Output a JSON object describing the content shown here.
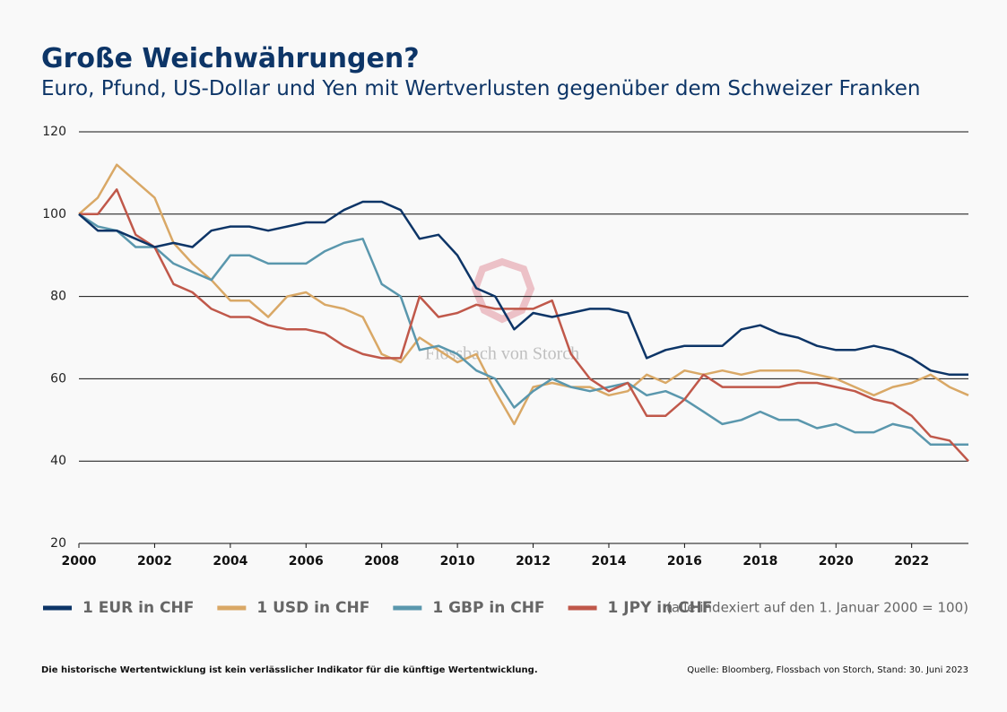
{
  "chart_data": {
    "type": "line",
    "title": "Große Weichwährungen?",
    "subtitle": "Euro, Pfund, US-Dollar und Yen mit Wertverlusten gegenüber dem Schweizer Franken",
    "legend_note": "(alle indexiert auf den 1. Januar 2000 = 100)",
    "watermark": "Flossbach von Storch",
    "footnote": "Die historische Wertentwicklung ist kein verlässlicher Indikator für die künftige Wertentwicklung.",
    "source": "Quelle: Bloomberg, Flossbach von Storch, Stand: 30. Juni 2023",
    "x": [
      2000,
      2000.5,
      2001,
      2001.5,
      2002,
      2002.5,
      2003,
      2003.5,
      2004,
      2004.5,
      2005,
      2005.5,
      2006,
      2006.5,
      2007,
      2007.5,
      2008,
      2008.5,
      2009,
      2009.5,
      2010,
      2010.5,
      2011,
      2011.5,
      2012,
      2012.5,
      2013,
      2013.5,
      2014,
      2014.5,
      2015,
      2015.5,
      2016,
      2016.5,
      2017,
      2017.5,
      2018,
      2018.5,
      2019,
      2019.5,
      2020,
      2020.5,
      2021,
      2021.5,
      2022,
      2022.5,
      2023,
      2023.5
    ],
    "series": [
      {
        "name": "1 EUR in CHF",
        "color": "#0d3567",
        "values": [
          100,
          96,
          96,
          94,
          92,
          93,
          92,
          96,
          97,
          97,
          96,
          97,
          98,
          98,
          101,
          103,
          103,
          101,
          94,
          95,
          90,
          82,
          80,
          72,
          76,
          75,
          76,
          77,
          77,
          76,
          65,
          67,
          68,
          68,
          68,
          72,
          73,
          71,
          70,
          68,
          67,
          67,
          68,
          67,
          65,
          62,
          61,
          61
        ]
      },
      {
        "name": "1 USD in CHF",
        "color": "#d9a866",
        "values": [
          100,
          104,
          112,
          108,
          104,
          93,
          88,
          84,
          79,
          79,
          75,
          80,
          81,
          78,
          77,
          75,
          66,
          64,
          70,
          67,
          64,
          66,
          57,
          49,
          58,
          59,
          58,
          58,
          56,
          57,
          61,
          59,
          62,
          61,
          62,
          61,
          62,
          62,
          62,
          61,
          60,
          58,
          56,
          58,
          59,
          61,
          58,
          56
        ]
      },
      {
        "name": "1 GBP in CHF",
        "color": "#5a97ad",
        "values": [
          100,
          97,
          96,
          92,
          92,
          88,
          86,
          84,
          90,
          90,
          88,
          88,
          88,
          91,
          93,
          94,
          83,
          80,
          67,
          68,
          66,
          62,
          60,
          53,
          57,
          60,
          58,
          57,
          58,
          59,
          56,
          57,
          55,
          52,
          49,
          50,
          52,
          50,
          50,
          48,
          49,
          47,
          47,
          49,
          48,
          44,
          44,
          44
        ]
      },
      {
        "name": "1 JPY in CHF",
        "color": "#c0584a",
        "values": [
          100,
          100,
          106,
          95,
          92,
          83,
          81,
          77,
          75,
          75,
          73,
          72,
          72,
          71,
          68,
          66,
          65,
          65,
          80,
          75,
          76,
          78,
          77,
          77,
          77,
          79,
          66,
          60,
          57,
          59,
          51,
          51,
          55,
          61,
          58,
          58,
          58,
          58,
          59,
          59,
          58,
          57,
          55,
          54,
          51,
          46,
          45,
          40
        ]
      }
    ],
    "xlim": [
      2000,
      2023.5
    ],
    "xticks": [
      2000,
      2002,
      2004,
      2006,
      2008,
      2010,
      2012,
      2014,
      2016,
      2018,
      2020,
      2022
    ],
    "ylim": [
      20,
      120
    ],
    "yticks": [
      20,
      40,
      60,
      80,
      100,
      120
    ],
    "grid": true
  }
}
